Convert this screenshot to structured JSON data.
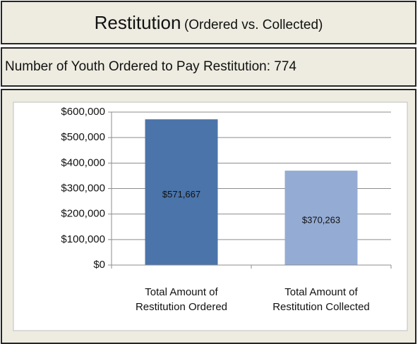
{
  "header": {
    "title": "Restitution",
    "subtitle": "(Ordered vs. Collected)"
  },
  "summary": {
    "label": "Number of Youth Ordered to Pay Restitution:",
    "value": 774
  },
  "chart_data": {
    "type": "bar",
    "categories": [
      [
        "Total Amount of",
        "Restitution Ordered"
      ],
      [
        "Total Amount of",
        "Restitution Collected"
      ]
    ],
    "values": [
      571667,
      370263
    ],
    "value_labels": [
      "$571,667",
      "$370,263"
    ],
    "colors": [
      "#4a74aa",
      "#94abd4"
    ],
    "ylim": [
      0,
      600000
    ],
    "yticks": [
      {
        "value": 0,
        "label": "$0"
      },
      {
        "value": 100000,
        "label": "$100,000"
      },
      {
        "value": 200000,
        "label": "$200,000"
      },
      {
        "value": 300000,
        "label": "$300,000"
      },
      {
        "value": 400000,
        "label": "$400,000"
      },
      {
        "value": 500000,
        "label": "$500,000"
      },
      {
        "value": 600000,
        "label": "$600,000"
      }
    ],
    "grid": true
  }
}
